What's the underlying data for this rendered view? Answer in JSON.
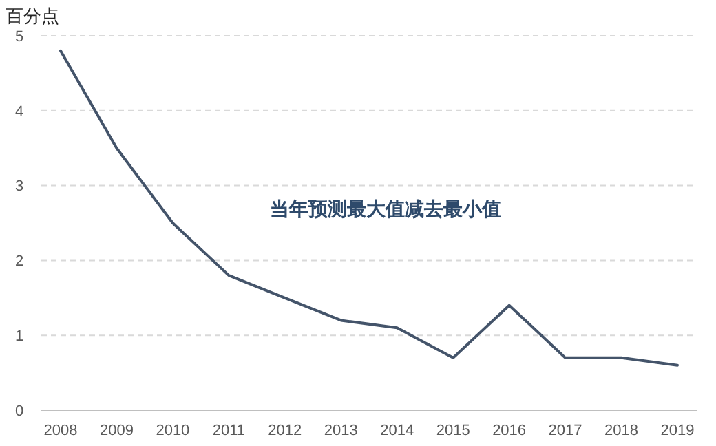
{
  "chart_data": {
    "type": "line",
    "ylabel": "百分点",
    "categories": [
      "2008",
      "2009",
      "2010",
      "2011",
      "2012",
      "2013",
      "2014",
      "2015",
      "2016",
      "2017",
      "2018",
      "2019"
    ],
    "series": [
      {
        "color": "#44546a",
        "values": [
          4.8,
          3.5,
          2.5,
          1.8,
          1.5,
          1.2,
          1.1,
          0.7,
          1.4,
          0.7,
          0.7,
          0.6
        ]
      }
    ],
    "ylim": [
      0,
      5
    ],
    "yticks": [
      0,
      1,
      2,
      3,
      4,
      5
    ],
    "grid": "y",
    "annotations": [
      "当年预测最大值减去最小值"
    ]
  }
}
